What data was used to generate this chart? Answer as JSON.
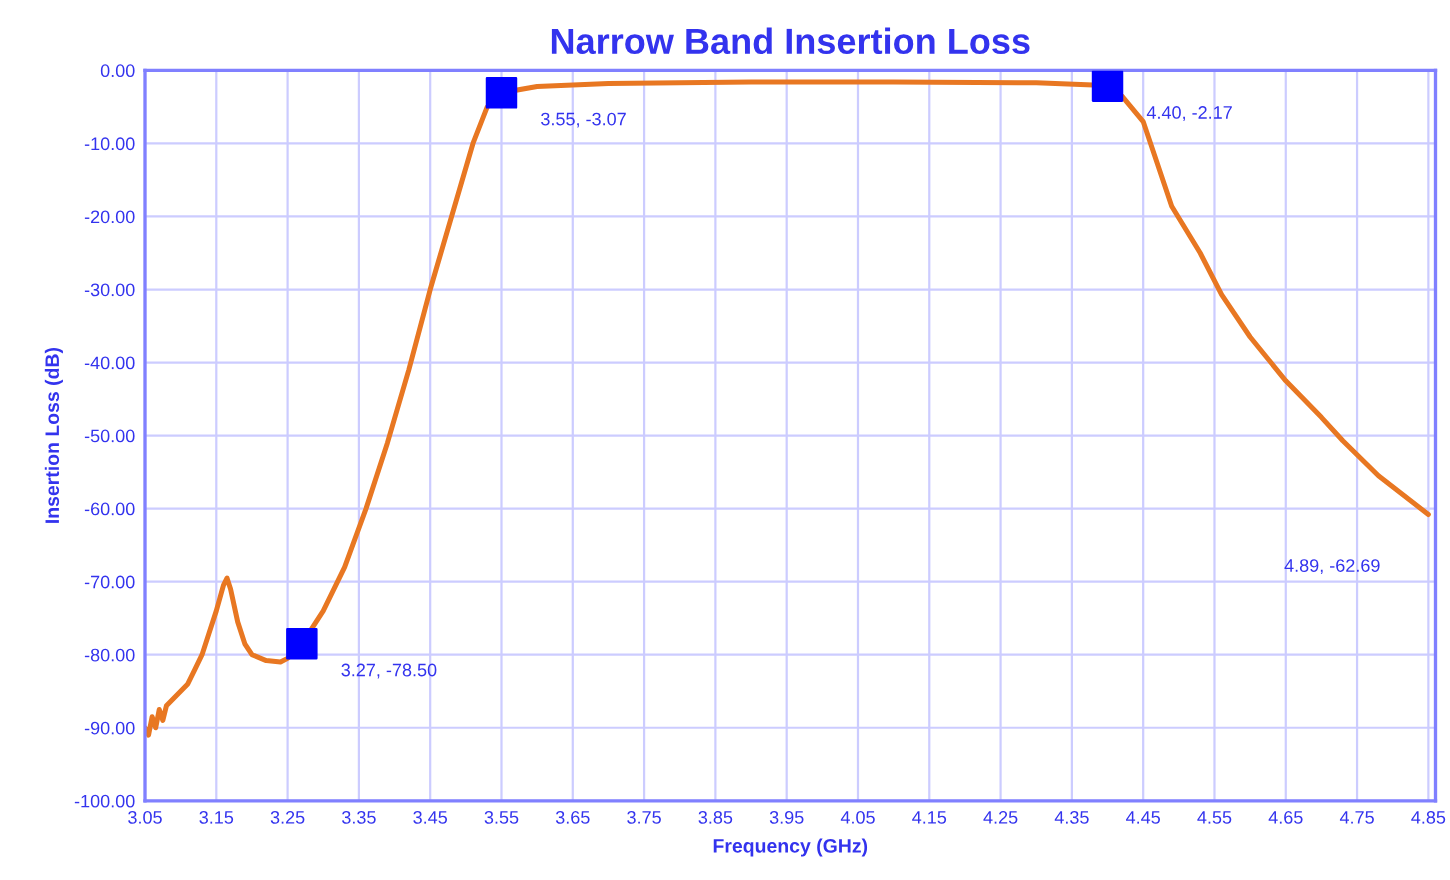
{
  "chart_data": {
    "type": "line",
    "title": "Narrow Band Insertion Loss",
    "xlabel": "Frequency (GHz)",
    "ylabel": "Insertion Loss (dB)",
    "series": [
      {
        "color": "#e87722",
        "marker": "none",
        "x": [
          3.05,
          3.055,
          3.06,
          3.065,
          3.07,
          3.075,
          3.08,
          3.09,
          3.1,
          3.11,
          3.12,
          3.13,
          3.14,
          3.15,
          3.16,
          3.165,
          3.17,
          3.18,
          3.19,
          3.2,
          3.22,
          3.24,
          3.25,
          3.27,
          3.3,
          3.33,
          3.36,
          3.39,
          3.42,
          3.45,
          3.48,
          3.51,
          3.53,
          3.55,
          3.6,
          3.7,
          3.9,
          4.1,
          4.3,
          4.38,
          4.4,
          4.42,
          4.45,
          4.49,
          4.53,
          4.56,
          4.6,
          4.65,
          4.7,
          4.73,
          4.78,
          4.85
        ],
        "values": [
          -90,
          -91,
          -88.5,
          -90,
          -87.5,
          -89,
          -87,
          -86,
          -85,
          -84,
          -82,
          -80,
          -77,
          -74,
          -70.5,
          -69.5,
          -71,
          -75.5,
          -78.5,
          -80,
          -80.8,
          -81,
          -80.5,
          -78.5,
          -74,
          -68,
          -60,
          -51,
          -41,
          -30,
          -20,
          -10,
          -5,
          -3.07,
          -2.2,
          -1.8,
          -1.6,
          -1.6,
          -1.7,
          -2.0,
          -2.17,
          -3.5,
          -7,
          -18.6,
          -25,
          -30.7,
          -36.5,
          -42.5,
          -47.5,
          -50.7,
          -55.5,
          -60.8
        ]
      },
      {
        "type": "scatter",
        "color": "#0000ff",
        "marker": "square",
        "x": [
          3.27,
          3.55,
          4.4
        ],
        "values": [
          -78.5,
          -3.07,
          -2.17
        ]
      }
    ],
    "annotations": [
      {
        "text": "3.27, -78.50",
        "x": 3.27,
        "y": -78.5
      },
      {
        "text": "3.55, -3.07",
        "x": 3.55,
        "y": -3.07
      },
      {
        "text": "4.40, -2.17",
        "x": 4.4,
        "y": -2.17
      },
      "4.89, -62.69"
    ],
    "xlim": [
      3.05,
      4.86
    ],
    "xticks": [
      {
        "value": 3.05,
        "label": "3.05"
      },
      {
        "value": 3.15,
        "label": "3.15"
      },
      {
        "value": 3.25,
        "label": "3.25"
      },
      {
        "value": 3.35,
        "label": "3.35"
      },
      {
        "value": 3.45,
        "label": "3.45"
      },
      {
        "value": 3.55,
        "label": "3.55"
      },
      {
        "value": 3.65,
        "label": "3.65"
      },
      {
        "value": 3.75,
        "label": "3.75"
      },
      {
        "value": 3.85,
        "label": "3.85"
      },
      {
        "value": 3.95,
        "label": "3.95"
      },
      {
        "value": 4.05,
        "label": "4.05"
      },
      {
        "value": 4.15,
        "label": "4.15"
      },
      {
        "value": 4.25,
        "label": "4.25"
      },
      {
        "value": 4.35,
        "label": "4.35"
      },
      {
        "value": 4.45,
        "label": "4.45"
      },
      {
        "value": 4.55,
        "label": "4.55"
      },
      {
        "value": 4.65,
        "label": "4.65"
      },
      {
        "value": 4.75,
        "label": "4.75"
      },
      {
        "value": 4.85,
        "label": "4.85"
      }
    ],
    "ylim": [
      -100,
      0
    ],
    "yticks": [
      {
        "value": 0,
        "label": "0.00"
      },
      {
        "value": -10,
        "label": "-10.00"
      },
      {
        "value": -20,
        "label": "-20.00"
      },
      {
        "value": -30,
        "label": "-30.00"
      },
      {
        "value": -40,
        "label": "-40.00"
      },
      {
        "value": -50,
        "label": "-50.00"
      },
      {
        "value": -60,
        "label": "-60.00"
      },
      {
        "value": -70,
        "label": "-70.00"
      },
      {
        "value": -80,
        "label": "-80.00"
      },
      {
        "value": -90,
        "label": "-90.00"
      },
      {
        "value": -100,
        "label": "-100.00"
      }
    ],
    "grid": true,
    "legend": false
  }
}
